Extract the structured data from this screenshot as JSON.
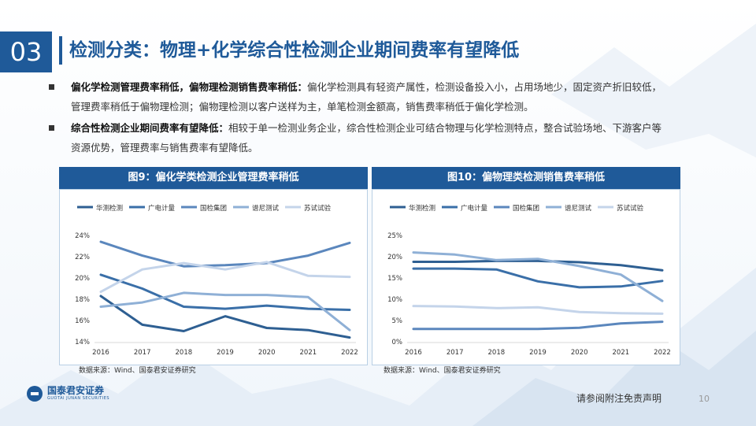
{
  "section_number": "03",
  "page_title": "检测分类：物理+化学综合性检测企业期间费率有望降低",
  "bullets": [
    {
      "lead": "偏化学检测管理费率稍低，偏物理检测销售费率稍低：",
      "line1": "偏化学检测具有轻资产属性，检测设备投入小，占用场地少，固定资产折旧较低，",
      "line2": "管理费率稍低于偏物理检测；偏物理检测以客户送样为主，单笔检测金额高，销售费率稍低于偏化学检测。"
    },
    {
      "lead": "综合性检测企业期间费率有望降低：",
      "line1": "相较于单一检测业务企业，综合性检测企业可结合物理与化学检测特点，整合试验场地、下游客户等",
      "line2": "资源优势，管理费率与销售费率有望降低。"
    }
  ],
  "chart_data": [
    {
      "type": "line",
      "title": "图9：偏化学类检测企业管理费率稍低",
      "source": "数据来源：Wind、国泰君安证券研究",
      "x": [
        "2016",
        "2017",
        "2018",
        "2019",
        "2020",
        "2021",
        "2022"
      ],
      "ylim": [
        0.14,
        0.24
      ],
      "yticks": [
        "14%",
        "16%",
        "18%",
        "20%",
        "22%",
        "24%"
      ],
      "legend_position": "top",
      "grid": false,
      "series": [
        {
          "name": "华测检测",
          "color": "#2e5f92",
          "values": [
            0.183,
            0.156,
            0.15,
            0.164,
            0.153,
            0.151,
            0.144
          ]
        },
        {
          "name": "广电计量",
          "color": "#3a6fa8",
          "values": [
            0.203,
            0.19,
            0.173,
            0.171,
            0.174,
            0.171,
            0.17
          ]
        },
        {
          "name": "国检集团",
          "color": "#5b87bd",
          "values": [
            0.234,
            0.221,
            0.211,
            0.212,
            0.214,
            0.221,
            0.233
          ]
        },
        {
          "name": "谱尼测试",
          "color": "#8fb0d6",
          "values": [
            0.173,
            0.177,
            0.186,
            0.184,
            0.184,
            0.182,
            0.151
          ]
        },
        {
          "name": "苏试试验",
          "color": "#c4d4ea",
          "values": [
            0.187,
            0.208,
            0.214,
            0.208,
            0.215,
            0.202,
            0.201
          ]
        }
      ]
    },
    {
      "type": "line",
      "title": "图10：偏物理类检测销售费率稍低",
      "source": "数据来源：Wind、国泰君安证券研究",
      "x": [
        "2016",
        "2017",
        "2018",
        "2019",
        "2020",
        "2021",
        "2022"
      ],
      "ylim": [
        0.0,
        0.25
      ],
      "yticks": [
        "0%",
        "5%",
        "10%",
        "15%",
        "20%",
        "25%"
      ],
      "legend_position": "top",
      "grid": false,
      "series": [
        {
          "name": "华测检测",
          "color": "#2e5f92",
          "values": [
            0.188,
            0.188,
            0.19,
            0.19,
            0.187,
            0.18,
            0.168
          ]
        },
        {
          "name": "广电计量",
          "color": "#3a6fa8",
          "values": [
            0.172,
            0.172,
            0.17,
            0.142,
            0.128,
            0.13,
            0.143
          ]
        },
        {
          "name": "国检集团",
          "color": "#5b87bd",
          "values": [
            0.03,
            0.03,
            0.03,
            0.03,
            0.033,
            0.043,
            0.047
          ]
        },
        {
          "name": "谱尼测试",
          "color": "#8fb0d6",
          "values": [
            0.21,
            0.205,
            0.192,
            0.195,
            0.178,
            0.158,
            0.096
          ]
        },
        {
          "name": "苏试试验",
          "color": "#c4d4ea",
          "values": [
            0.084,
            0.083,
            0.079,
            0.081,
            0.07,
            0.067,
            0.066
          ]
        }
      ]
    }
  ],
  "footer": {
    "logo_cn": "国泰君安证券",
    "logo_en": "GUOTAI JUNAN SECURITIES",
    "disclaimer": "请参阅附注免责声明",
    "page_number": "10"
  }
}
